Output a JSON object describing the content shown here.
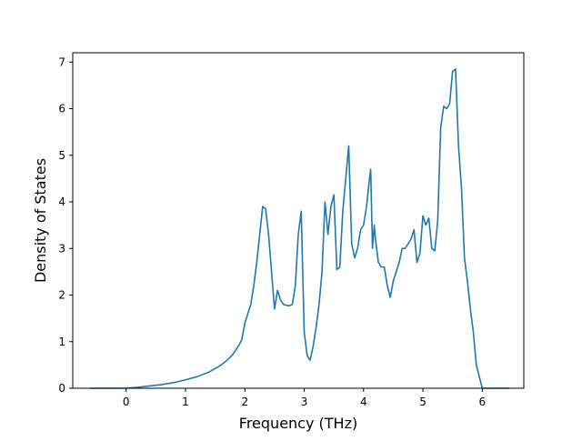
{
  "chart_data": {
    "type": "line",
    "title": "",
    "xlabel": "Frequency (THz)",
    "ylabel": "Density of States",
    "xlim": [
      -0.9,
      6.7
    ],
    "ylim": [
      0,
      7.2
    ],
    "xticks": [
      0,
      1,
      2,
      3,
      4,
      5,
      6
    ],
    "yticks": [
      0,
      1,
      2,
      3,
      4,
      5,
      6,
      7
    ],
    "grid": false,
    "series": [
      {
        "color": "#1f77b4",
        "x": [
          -0.6,
          -0.4,
          -0.2,
          0.0,
          0.2,
          0.4,
          0.6,
          0.8,
          1.0,
          1.2,
          1.4,
          1.6,
          1.7,
          1.8,
          1.9,
          1.95,
          2.0,
          2.05,
          2.1,
          2.15,
          2.2,
          2.25,
          2.3,
          2.35,
          2.4,
          2.45,
          2.5,
          2.55,
          2.6,
          2.65,
          2.7,
          2.75,
          2.8,
          2.85,
          2.9,
          2.95,
          3.0,
          3.05,
          3.1,
          3.15,
          3.2,
          3.25,
          3.3,
          3.35,
          3.4,
          3.45,
          3.5,
          3.55,
          3.6,
          3.65,
          3.7,
          3.75,
          3.8,
          3.85,
          3.9,
          3.95,
          4.0,
          4.05,
          4.1,
          4.12,
          4.15,
          4.18,
          4.2,
          4.25,
          4.3,
          4.35,
          4.4,
          4.45,
          4.5,
          4.55,
          4.6,
          4.65,
          4.7,
          4.75,
          4.8,
          4.85,
          4.9,
          4.95,
          5.0,
          5.05,
          5.1,
          5.15,
          5.2,
          5.25,
          5.3,
          5.35,
          5.4,
          5.45,
          5.5,
          5.55,
          5.6,
          5.65,
          5.7,
          5.75,
          5.8,
          5.85,
          5.9,
          6.0,
          6.2,
          6.45
        ],
        "y": [
          0.0,
          0.0,
          0.0,
          0.0,
          0.02,
          0.05,
          0.08,
          0.12,
          0.18,
          0.25,
          0.35,
          0.5,
          0.6,
          0.73,
          0.92,
          1.05,
          1.4,
          1.6,
          1.8,
          2.2,
          2.7,
          3.3,
          3.9,
          3.85,
          3.3,
          2.5,
          1.7,
          2.1,
          1.9,
          1.8,
          1.78,
          1.77,
          1.8,
          2.2,
          3.3,
          3.8,
          1.2,
          0.7,
          0.6,
          0.9,
          1.3,
          1.8,
          2.5,
          4.0,
          3.3,
          3.9,
          4.15,
          2.55,
          2.6,
          3.8,
          4.5,
          5.2,
          3.1,
          2.8,
          3.0,
          3.4,
          3.5,
          3.9,
          4.5,
          4.7,
          3.0,
          3.5,
          3.2,
          2.7,
          2.6,
          2.6,
          2.2,
          1.95,
          2.3,
          2.5,
          2.7,
          3.0,
          3.0,
          3.1,
          3.2,
          3.4,
          2.7,
          2.9,
          3.7,
          3.5,
          3.65,
          3.0,
          2.95,
          3.6,
          5.6,
          6.05,
          6.0,
          6.1,
          6.8,
          6.85,
          5.2,
          4.3,
          2.8,
          2.3,
          1.7,
          1.2,
          0.5,
          0.0,
          0.0,
          0.0
        ]
      }
    ]
  }
}
